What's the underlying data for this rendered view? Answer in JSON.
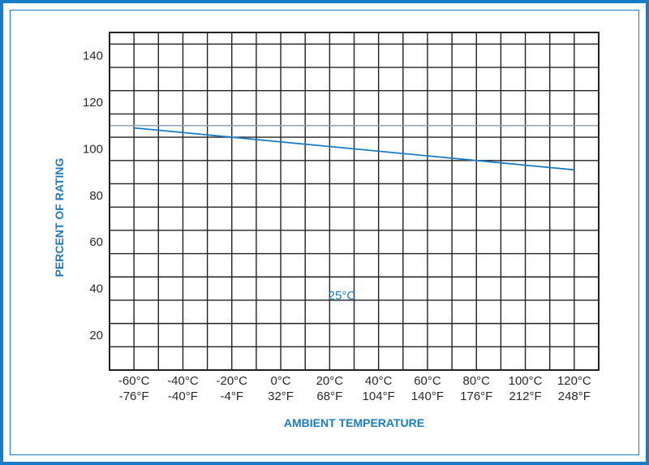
{
  "chart_data": {
    "type": "line",
    "xlabel": "AMBIENT TEMPERATURE",
    "ylabel": "PERCENT OF RATING",
    "x_ticks": [
      {
        "c": "-60°C",
        "f": "-76°F"
      },
      {
        "c": "-40°C",
        "f": "-40°F"
      },
      {
        "c": "-20°C",
        "f": "-4°F"
      },
      {
        "c": "0°C",
        "f": "32°F"
      },
      {
        "c": "20°C",
        "f": "68°F"
      },
      {
        "c": "40°C",
        "f": "104°F"
      },
      {
        "c": "60°C",
        "f": "140°F"
      },
      {
        "c": "80°C",
        "f": "176°F"
      },
      {
        "c": "100°C",
        "f": "212°F"
      },
      {
        "c": "120°C",
        "f": "248°F"
      }
    ],
    "y_ticks": [
      20,
      40,
      60,
      80,
      100,
      120,
      140
    ],
    "xlim": [
      -70,
      130
    ],
    "ylim": [
      5,
      150
    ],
    "grid": true,
    "annotation": "25°C",
    "series": [
      {
        "color": "#1a7cc4",
        "x": [
          -60,
          120
        ],
        "y": [
          109,
          91
        ]
      }
    ],
    "reference_line": {
      "y": 110,
      "color": "#8ea3b5"
    }
  }
}
